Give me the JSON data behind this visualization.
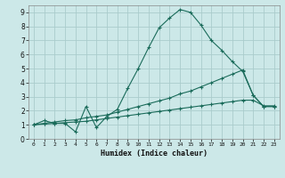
{
  "xlabel": "Humidex (Indice chaleur)",
  "bg_color": "#cce8e8",
  "grid_color": "#aacccc",
  "line_color": "#1a6b5a",
  "xlim": [
    -0.5,
    23.5
  ],
  "ylim": [
    0,
    9.5
  ],
  "xticks": [
    0,
    1,
    2,
    3,
    4,
    5,
    6,
    7,
    8,
    9,
    10,
    11,
    12,
    13,
    14,
    15,
    16,
    17,
    18,
    19,
    20,
    21,
    22,
    23
  ],
  "yticks": [
    0,
    1,
    2,
    3,
    4,
    5,
    6,
    7,
    8,
    9
  ],
  "line1_x": [
    0,
    1,
    2,
    3,
    4,
    5,
    6,
    7,
    8,
    9,
    10,
    11,
    12,
    13,
    14,
    15,
    16,
    17,
    18,
    19,
    20,
    21,
    22,
    23
  ],
  "line1_y": [
    1.0,
    1.3,
    1.1,
    1.1,
    0.5,
    2.3,
    0.8,
    1.6,
    2.1,
    3.6,
    5.0,
    6.5,
    7.9,
    8.6,
    9.2,
    9.0,
    8.1,
    7.0,
    6.3,
    5.5,
    4.8,
    3.1,
    2.3,
    2.3
  ],
  "line2_x": [
    0,
    1,
    2,
    3,
    4,
    5,
    6,
    7,
    8,
    9,
    10,
    11,
    12,
    13,
    14,
    15,
    16,
    17,
    18,
    19,
    20,
    21,
    22,
    23
  ],
  "line2_y": [
    1.0,
    1.1,
    1.2,
    1.3,
    1.35,
    1.5,
    1.6,
    1.7,
    1.9,
    2.1,
    2.3,
    2.5,
    2.7,
    2.9,
    3.2,
    3.4,
    3.7,
    4.0,
    4.3,
    4.6,
    4.9,
    3.1,
    2.3,
    2.3
  ],
  "line3_x": [
    0,
    1,
    2,
    3,
    4,
    5,
    6,
    7,
    8,
    9,
    10,
    11,
    12,
    13,
    14,
    15,
    16,
    17,
    18,
    19,
    20,
    21,
    22,
    23
  ],
  "line3_y": [
    1.0,
    1.05,
    1.1,
    1.15,
    1.2,
    1.25,
    1.35,
    1.45,
    1.55,
    1.65,
    1.75,
    1.85,
    1.95,
    2.05,
    2.15,
    2.25,
    2.35,
    2.45,
    2.55,
    2.65,
    2.75,
    2.75,
    2.35,
    2.35
  ]
}
